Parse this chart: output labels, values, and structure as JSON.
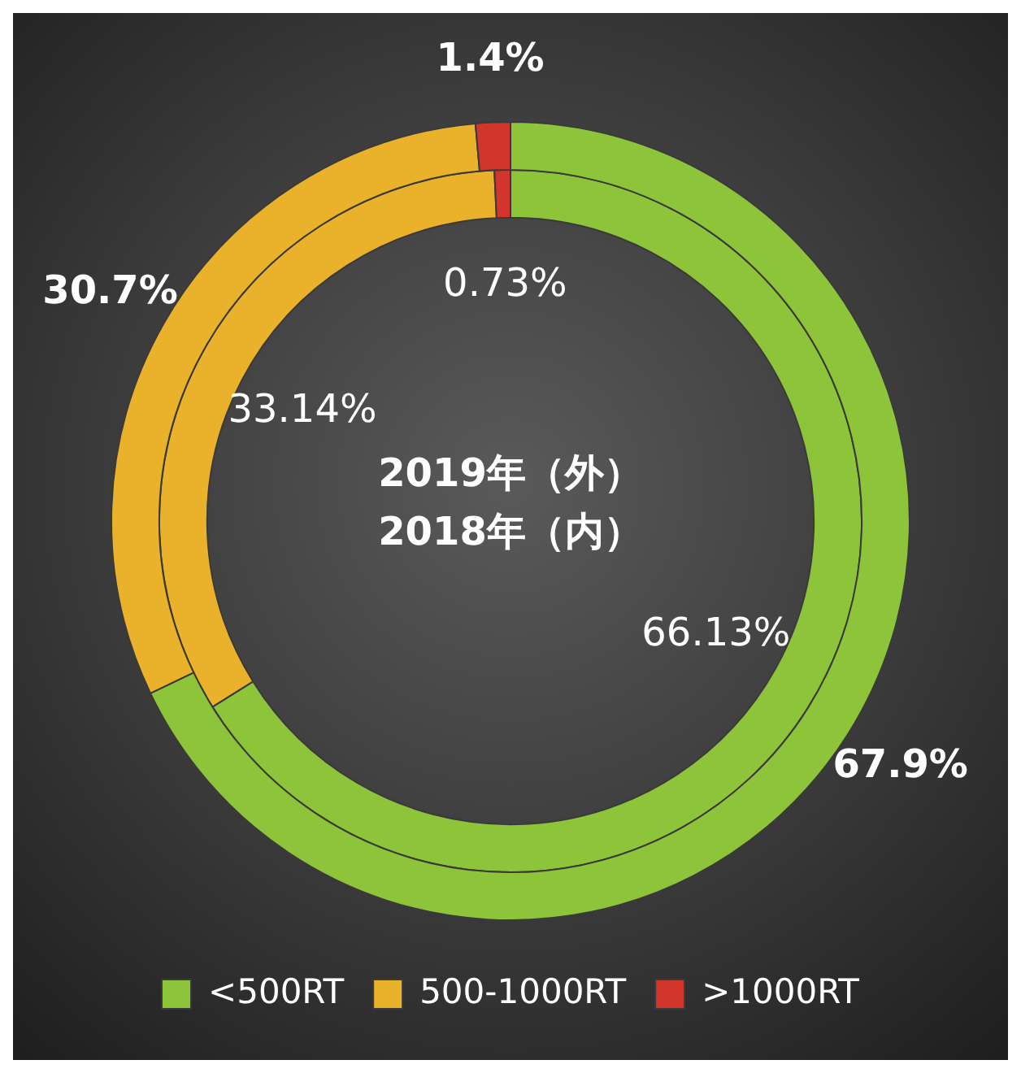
{
  "chart_data": {
    "type": "donut",
    "title": "2019年（外）",
    "subtitle": "2018年（内）",
    "categories": [
      "<500RT",
      "500-1000RT",
      ">1000RT"
    ],
    "colors": [
      "#8dc43a",
      "#eab22a",
      "#d2352b"
    ],
    "legend": "bottom",
    "series": [
      {
        "values": [
          67.9,
          30.7,
          1.4
        ],
        "value_labels": [
          "67.9%",
          "30.7%",
          "1.4%"
        ]
      },
      {
        "values": [
          66.13,
          33.14,
          0.73
        ],
        "value_labels": [
          "66.13%",
          "33.14%",
          "0.73%"
        ]
      }
    ]
  }
}
